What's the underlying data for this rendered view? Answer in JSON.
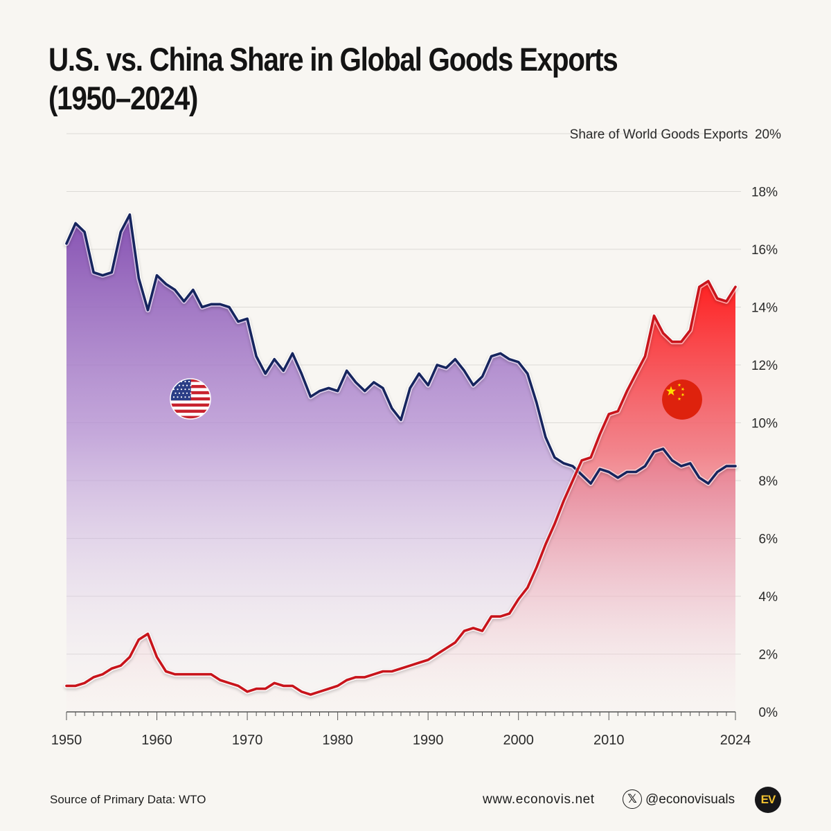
{
  "title_line1": "U.S. vs. China Share in Global Goods Exports",
  "title_line2": "(1950–2024)",
  "footer": {
    "source": "Source of Primary Data: WTO",
    "website": "www.econovis.net",
    "x_icon": "x-logo-icon",
    "handle": "@econovisuals",
    "logo_text": "EV"
  },
  "colors": {
    "us_line": "#16255e",
    "china_line": "#c8141b",
    "us_fill": "#8a5bb5",
    "china_fill": "#ff2a2a"
  },
  "chart_data": {
    "type": "area",
    "ylabel": "Share of World Goods  Exports",
    "ylim": [
      0,
      20
    ],
    "xlim": [
      1950,
      2024
    ],
    "yticks": [
      "0%",
      "2%",
      "4%",
      "6%",
      "8%",
      "10%",
      "12%",
      "14%",
      "16%",
      "18%",
      "20%"
    ],
    "xticks": [
      "1950",
      "1960",
      "1970",
      "1980",
      "1990",
      "2000",
      "2010",
      "2024"
    ],
    "x": [
      1950,
      1951,
      1952,
      1953,
      1954,
      1955,
      1956,
      1957,
      1958,
      1959,
      1960,
      1961,
      1962,
      1963,
      1964,
      1965,
      1966,
      1967,
      1968,
      1969,
      1970,
      1971,
      1972,
      1973,
      1974,
      1975,
      1976,
      1977,
      1978,
      1979,
      1980,
      1981,
      1982,
      1983,
      1984,
      1985,
      1986,
      1987,
      1988,
      1989,
      1990,
      1991,
      1992,
      1993,
      1994,
      1995,
      1996,
      1997,
      1998,
      1999,
      2000,
      2001,
      2002,
      2003,
      2004,
      2005,
      2006,
      2007,
      2008,
      2009,
      2010,
      2011,
      2012,
      2013,
      2014,
      2015,
      2016,
      2017,
      2018,
      2019,
      2020,
      2021,
      2022,
      2023,
      2024
    ],
    "series": [
      {
        "name": "United States",
        "flag": "us-flag-icon",
        "values": [
          16.2,
          16.9,
          16.6,
          15.2,
          15.1,
          15.2,
          16.6,
          17.2,
          15.0,
          13.9,
          15.1,
          14.8,
          14.6,
          14.2,
          14.6,
          14.0,
          14.1,
          14.1,
          14.0,
          13.5,
          13.6,
          12.3,
          11.7,
          12.2,
          11.8,
          12.4,
          11.7,
          10.9,
          11.1,
          11.2,
          11.1,
          11.8,
          11.4,
          11.1,
          11.4,
          11.2,
          10.5,
          10.1,
          11.2,
          11.7,
          11.3,
          12.0,
          11.9,
          12.2,
          11.8,
          11.3,
          11.6,
          12.3,
          12.4,
          12.2,
          12.1,
          11.7,
          10.7,
          9.5,
          8.8,
          8.6,
          8.5,
          8.2,
          7.9,
          8.4,
          8.3,
          8.1,
          8.3,
          8.3,
          8.5,
          9.0,
          9.1,
          8.7,
          8.5,
          8.6,
          8.1,
          7.9,
          8.3,
          8.5,
          8.5
        ]
      },
      {
        "name": "China",
        "flag": "china-flag-icon",
        "values": [
          0.9,
          0.9,
          1.0,
          1.2,
          1.3,
          1.5,
          1.6,
          1.9,
          2.5,
          2.7,
          1.9,
          1.4,
          1.3,
          1.3,
          1.3,
          1.3,
          1.3,
          1.1,
          1.0,
          0.9,
          0.7,
          0.8,
          0.8,
          1.0,
          0.9,
          0.9,
          0.7,
          0.6,
          0.7,
          0.8,
          0.9,
          1.1,
          1.2,
          1.2,
          1.3,
          1.4,
          1.4,
          1.5,
          1.6,
          1.7,
          1.8,
          2.0,
          2.2,
          2.4,
          2.8,
          2.9,
          2.8,
          3.3,
          3.3,
          3.4,
          3.9,
          4.3,
          5.0,
          5.8,
          6.5,
          7.3,
          8.0,
          8.7,
          8.8,
          9.6,
          10.3,
          10.4,
          11.1,
          11.7,
          12.3,
          13.7,
          13.1,
          12.8,
          12.8,
          13.2,
          14.7,
          14.9,
          14.3,
          14.2,
          14.7
        ]
      }
    ]
  }
}
